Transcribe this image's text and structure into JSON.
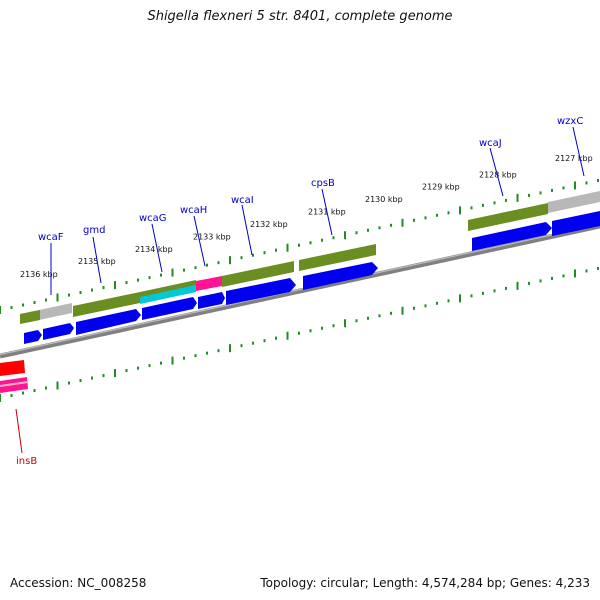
{
  "title": "Shigella flexneri 5 str. 8401, complete genome",
  "accession": "Accession: NC_008258",
  "summary": "Topology: circular; Length: 4,574,284 bp; Genes: 4,233",
  "ticks": [
    "2127 kbp",
    "2128 kbp",
    "2129 kbp",
    "2130 kbp",
    "2131 kbp",
    "2132 kbp",
    "2133 kbp",
    "2134 kbp",
    "2135 kbp",
    "2136 kbp"
  ],
  "genes": [
    {
      "name": "wzxC",
      "strand": "plus"
    },
    {
      "name": "wcaJ",
      "strand": "plus"
    },
    {
      "name": "cpsB",
      "strand": "plus"
    },
    {
      "name": "wcaI",
      "strand": "plus"
    },
    {
      "name": "wcaH",
      "strand": "plus"
    },
    {
      "name": "wcaG",
      "strand": "plus"
    },
    {
      "name": "gmd",
      "strand": "plus"
    },
    {
      "name": "wcaF",
      "strand": "plus"
    },
    {
      "name": "insB",
      "strand": "minus"
    }
  ],
  "colors": {
    "cds": "#0000ee",
    "gene_plus": "#6b8e23",
    "gene_grey": "#b8b8b8",
    "gene_cyan": "#00c8d8",
    "gene_pink": "#ff1493",
    "gene_red": "#ff0000",
    "tick": "#228b22",
    "backbone": "#808080",
    "label_plus": "#0000cc",
    "label_minus": "#cc0000"
  }
}
